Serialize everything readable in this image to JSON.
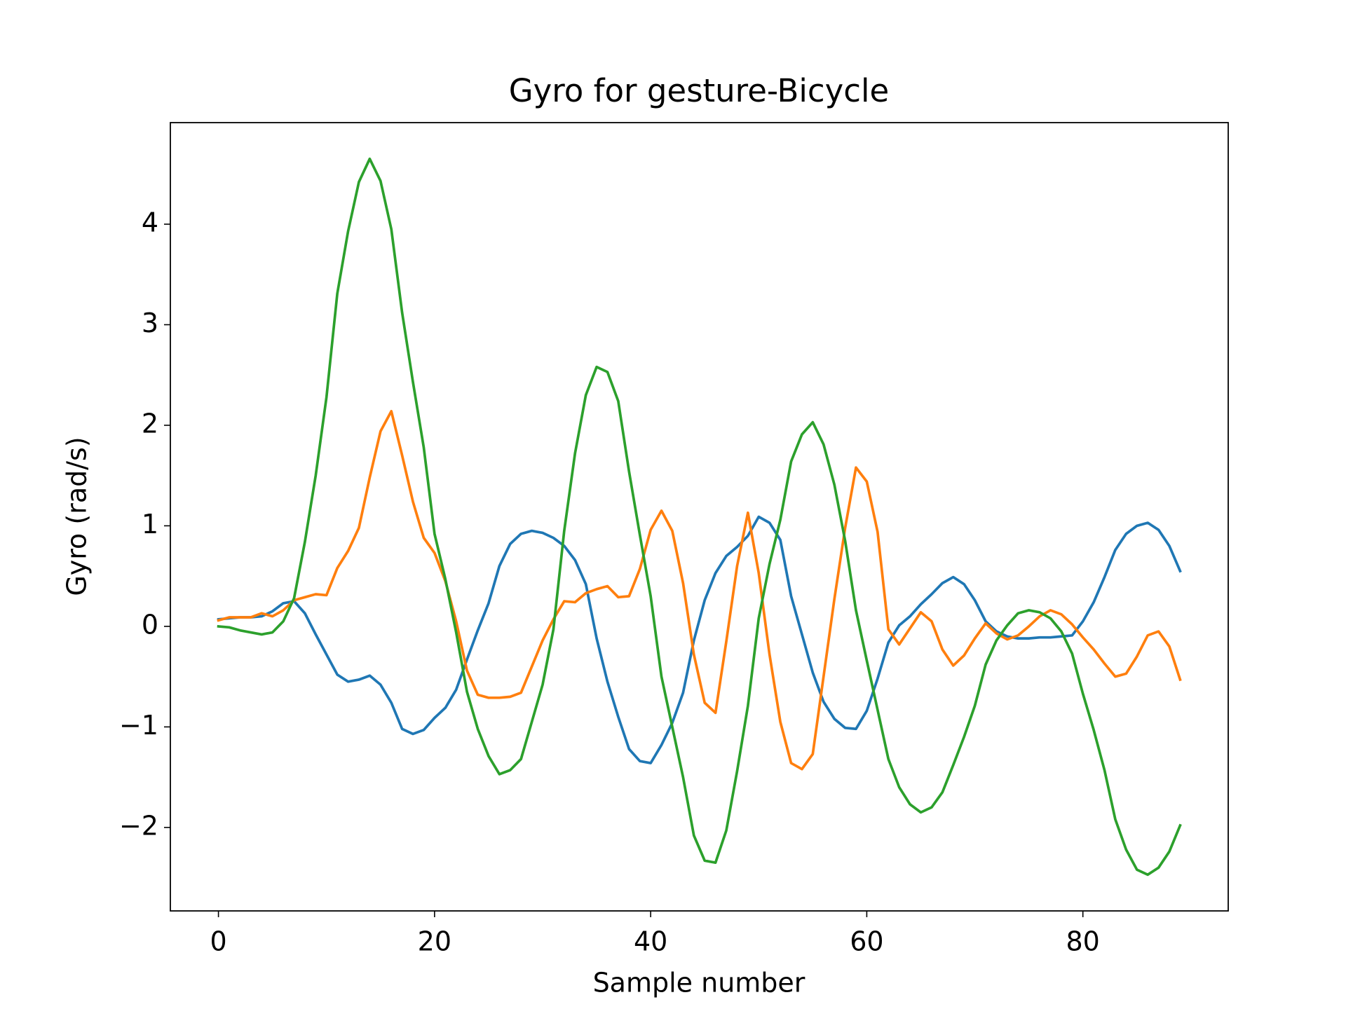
{
  "chart_data": {
    "type": "line",
    "title": "Gyro for gesture-Bicycle",
    "xlabel": "Sample number",
    "ylabel": "Gyro  (rad/s)",
    "x": [
      0,
      1,
      2,
      3,
      4,
      5,
      6,
      7,
      8,
      9,
      10,
      11,
      12,
      13,
      14,
      15,
      16,
      17,
      18,
      19,
      20,
      21,
      22,
      23,
      24,
      25,
      26,
      27,
      28,
      29,
      30,
      31,
      32,
      33,
      34,
      35,
      36,
      37,
      38,
      39,
      40,
      41,
      42,
      43,
      44,
      45,
      46,
      47,
      48,
      49,
      50,
      51,
      52,
      53,
      54,
      55,
      56,
      57,
      58,
      59,
      60,
      61,
      62,
      63,
      64,
      65,
      66,
      67,
      68,
      69,
      70,
      71,
      72,
      73,
      74,
      75,
      76,
      77,
      78,
      79,
      80,
      81,
      82,
      83,
      84,
      85,
      86,
      87,
      88,
      89
    ],
    "series": [
      {
        "color": "#1f77b4",
        "values": [
          0.07,
          0.08,
          0.09,
          0.09,
          0.1,
          0.15,
          0.23,
          0.25,
          0.13,
          -0.08,
          -0.28,
          -0.48,
          -0.55,
          -0.53,
          -0.49,
          -0.58,
          -0.76,
          -1.02,
          -1.07,
          -1.03,
          -0.91,
          -0.81,
          -0.63,
          -0.33,
          -0.04,
          0.23,
          0.6,
          0.82,
          0.92,
          0.95,
          0.93,
          0.88,
          0.8,
          0.66,
          0.42,
          -0.12,
          -0.55,
          -0.9,
          -1.22,
          -1.34,
          -1.36,
          -1.18,
          -0.96,
          -0.66,
          -0.14,
          0.26,
          0.53,
          0.7,
          0.79,
          0.9,
          1.09,
          1.03,
          0.86,
          0.3,
          -0.08,
          -0.46,
          -0.75,
          -0.92,
          -1.01,
          -1.02,
          -0.84,
          -0.52,
          -0.16,
          0.01,
          0.1,
          0.22,
          0.32,
          0.43,
          0.49,
          0.42,
          0.26,
          0.05,
          -0.05,
          -0.1,
          -0.12,
          -0.12,
          -0.11,
          -0.11,
          -0.1,
          -0.09,
          0.05,
          0.24,
          0.49,
          0.76,
          0.92,
          1.0,
          1.03,
          0.96,
          0.8,
          0.55
        ]
      },
      {
        "color": "#ff7f0e",
        "values": [
          0.06,
          0.09,
          0.09,
          0.09,
          0.13,
          0.1,
          0.16,
          0.26,
          0.29,
          0.32,
          0.31,
          0.58,
          0.75,
          0.98,
          1.48,
          1.94,
          2.14,
          1.7,
          1.24,
          0.88,
          0.73,
          0.45,
          0.05,
          -0.44,
          -0.68,
          -0.71,
          -0.71,
          -0.7,
          -0.66,
          -0.4,
          -0.14,
          0.07,
          0.25,
          0.24,
          0.33,
          0.37,
          0.4,
          0.29,
          0.3,
          0.57,
          0.96,
          1.15,
          0.95,
          0.43,
          -0.28,
          -0.76,
          -0.86,
          -0.15,
          0.6,
          1.13,
          0.53,
          -0.28,
          -0.95,
          -1.36,
          -1.42,
          -1.27,
          -0.5,
          0.27,
          0.98,
          1.58,
          1.44,
          0.94,
          -0.03,
          -0.18,
          -0.02,
          0.14,
          0.05,
          -0.23,
          -0.39,
          -0.29,
          -0.12,
          0.03,
          -0.07,
          -0.13,
          -0.09,
          0.0,
          0.1,
          0.16,
          0.12,
          0.02,
          -0.11,
          -0.23,
          -0.37,
          -0.5,
          -0.47,
          -0.3,
          -0.09,
          -0.05,
          -0.2,
          -0.53
        ]
      },
      {
        "color": "#2ca02c",
        "values": [
          0.0,
          -0.01,
          -0.04,
          -0.06,
          -0.08,
          -0.06,
          0.05,
          0.28,
          0.84,
          1.5,
          2.28,
          3.31,
          3.93,
          4.42,
          4.65,
          4.43,
          3.95,
          3.12,
          2.43,
          1.78,
          0.92,
          0.47,
          -0.06,
          -0.65,
          -1.02,
          -1.29,
          -1.47,
          -1.43,
          -1.32,
          -0.95,
          -0.58,
          -0.03,
          0.95,
          1.72,
          2.3,
          2.58,
          2.53,
          2.24,
          1.54,
          0.91,
          0.3,
          -0.5,
          -1.0,
          -1.5,
          -2.08,
          -2.33,
          -2.35,
          -2.03,
          -1.44,
          -0.79,
          0.08,
          0.62,
          1.06,
          1.64,
          1.91,
          2.03,
          1.81,
          1.41,
          0.85,
          0.16,
          -0.34,
          -0.83,
          -1.32,
          -1.6,
          -1.77,
          -1.85,
          -1.8,
          -1.65,
          -1.38,
          -1.1,
          -0.79,
          -0.38,
          -0.14,
          0.01,
          0.13,
          0.16,
          0.14,
          0.08,
          -0.05,
          -0.27,
          -0.67,
          -1.03,
          -1.43,
          -1.92,
          -2.22,
          -2.42,
          -2.47,
          -2.4,
          -2.24,
          -1.98
        ]
      }
    ],
    "xlim": [
      -4.45,
      93.45
    ],
    "xticks": [
      0,
      20,
      40,
      60,
      80
    ],
    "ylim": [
      -2.83,
      5.01
    ],
    "yticks": [
      {
        "value": -2,
        "label": "−2"
      },
      {
        "value": -1,
        "label": "−1"
      },
      0,
      1,
      2,
      3,
      4
    ],
    "grid": false
  }
}
